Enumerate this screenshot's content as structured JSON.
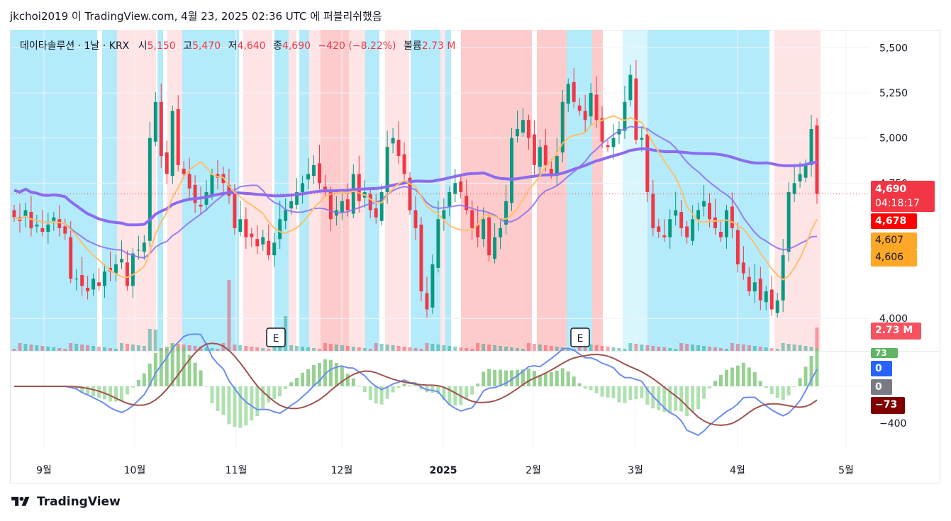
{
  "header": {
    "author": "jkchoi2019",
    "publish_text_1": "이",
    "site": "TradingView.com,",
    "date": "4월 23, 2025 02:36 UTC",
    "publish_text_2": "에 퍼블리쉬했음"
  },
  "legend": {
    "symbol": "데이타솔루션 · 1날 · KRX",
    "open_label": "시",
    "open": "5,150",
    "high_label": "고",
    "high": "5,470",
    "low_label": "저",
    "low": "4,640",
    "close_label": "종",
    "close": "4,690",
    "change": "−420 (−8.22%)",
    "volume_label": "볼륨",
    "volume": "2.73 M"
  },
  "price_tags": {
    "last_price": "4,690",
    "countdown": "04:18:17",
    "ma_red": "4,678",
    "ma_orange_1": "4,607",
    "ma_orange_2": "4,606",
    "volume_tag": "2.73 M"
  },
  "macd_tags": {
    "green": "73",
    "blue": "0",
    "gray": "0",
    "signal": "−73",
    "axis_label": "−400"
  },
  "earnings_markers": [
    "E",
    "E"
  ],
  "footer": {
    "logo_text": "TradingView"
  },
  "colors": {
    "up": "#089981",
    "down": "#f23645",
    "ma_purple": "#8b6cf0",
    "ma_red": "#ff0000",
    "ma_orange": "#ffc06b",
    "macd_line": "#6b8cf0",
    "signal_line": "#a0524d",
    "bg_blue": "#b3ebfb",
    "bg_pink": "#ffe4e6",
    "bg_red": "#fdcbcb"
  },
  "chart_data": {
    "type": "candlestick",
    "y_ticks": [
      "5,500",
      "5,250",
      "5,000",
      "4,750",
      "4,000"
    ],
    "ylim": [
      3820,
      5600
    ],
    "x_ticks": [
      "9월",
      "10월",
      "11월",
      "12월",
      "2025",
      "2월",
      "3월",
      "4월",
      "5월"
    ],
    "close_series_approx": [
      4560,
      4540,
      4600,
      4500,
      4520,
      4480,
      4520,
      4560,
      4500,
      4470,
      4220,
      4220,
      4180,
      4150,
      4220,
      4180,
      4260,
      4260,
      4300,
      4330,
      4180,
      4360,
      4380,
      4420,
      5000,
      5200,
      4900,
      4800,
      5150,
      4850,
      4800,
      4720,
      4640,
      4620,
      4700,
      4800,
      4780,
      4750,
      4680,
      4500,
      4550,
      4450,
      4450,
      4400,
      4450,
      4350,
      4420,
      4550,
      4600,
      4650,
      4700,
      4750,
      4800,
      4850,
      4750,
      4700,
      4550,
      4600,
      4650,
      4600,
      4800,
      4650,
      4700,
      4600,
      4560,
      4700,
      4950,
      5000,
      4900,
      4800,
      4600,
      4500,
      4150,
      4050,
      4300,
      4550,
      4600,
      4700,
      4750,
      4700,
      4600,
      4500,
      4450,
      4550,
      4350,
      4450,
      4500,
      4650,
      5000,
      5050,
      5100,
      5000,
      4850,
      4950,
      4850,
      4800,
      4900,
      5200,
      5300,
      5200,
      5150,
      5100,
      5250,
      5100,
      4980,
      4950,
      5000,
      5050,
      5200,
      5350,
      4990,
      5000,
      4700,
      4500,
      4480,
      4450,
      4550,
      4600,
      4500,
      4450,
      4550,
      4600,
      4650,
      4550,
      4500,
      4450,
      4600,
      4500,
      4300,
      4250,
      4150,
      4200,
      4100,
      4150,
      4050,
      4100,
      4350,
      4700,
      4750,
      4800,
      4850,
      5050,
      4690
    ],
    "ma_purple_last": 4678,
    "ma_orange_last": 4607,
    "volume_last": "2.73 M",
    "macd_tag_values": [
      73,
      0,
      0,
      -73
    ]
  }
}
